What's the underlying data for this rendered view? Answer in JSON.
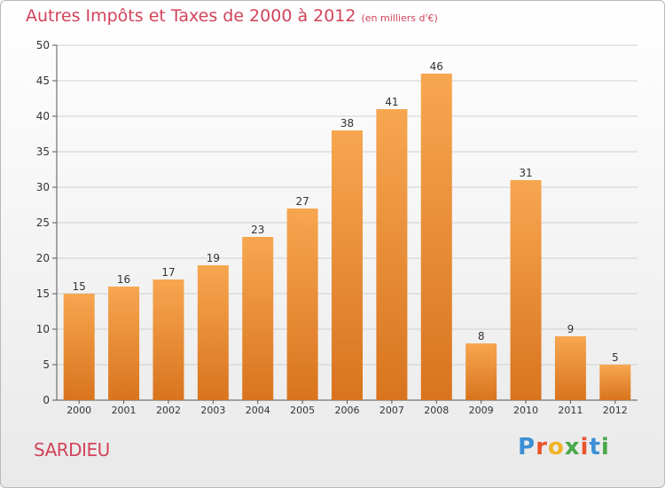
{
  "title": "Autres Impôts et Taxes de 2000 à 2012",
  "subtitle": "(en milliers d'€)",
  "place": "SARDIEU",
  "logo": "Proxiti",
  "colors": {
    "title": "#d2435b",
    "bar_light": "#f7a650",
    "bar_dark": "#d9741e",
    "logo": [
      "#3d8fd6",
      "#e8542c",
      "#f0b323",
      "#4aa84a",
      "#e8542c",
      "#3d8fd6",
      "#4aa84a"
    ]
  },
  "chart_data": {
    "type": "bar",
    "title": "Autres Impôts et Taxes de 2000 à 2012",
    "subtitle": "(en milliers d'€)",
    "categories": [
      "2000",
      "2001",
      "2002",
      "2003",
      "2004",
      "2005",
      "2006",
      "2007",
      "2008",
      "2009",
      "2010",
      "2011",
      "2012"
    ],
    "values": [
      15,
      16,
      17,
      19,
      23,
      27,
      38,
      41,
      46,
      8,
      31,
      9,
      5
    ],
    "ylim": [
      0,
      50
    ],
    "yticks": [
      0,
      5,
      10,
      15,
      20,
      25,
      30,
      35,
      40,
      45,
      50
    ],
    "grid": true,
    "data_labels": true
  }
}
